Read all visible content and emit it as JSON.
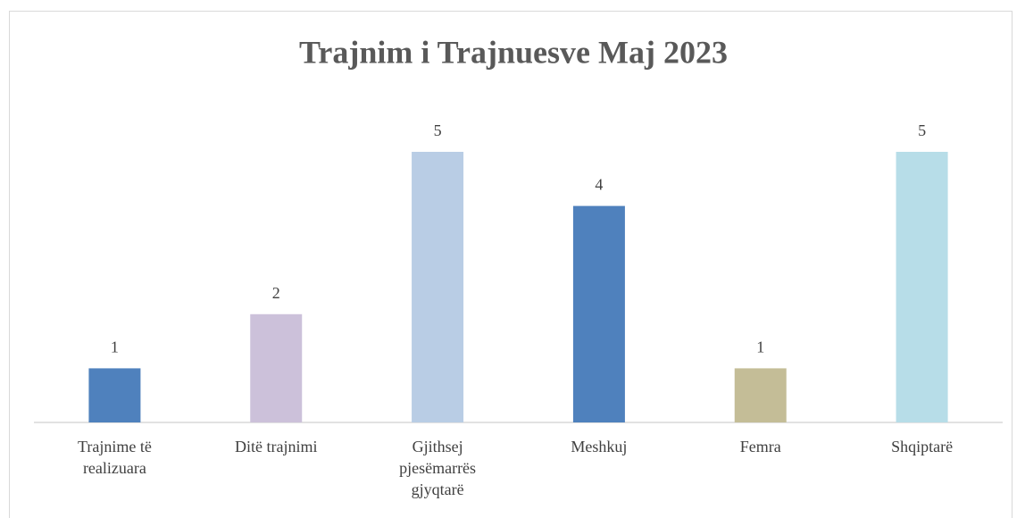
{
  "chart_data": {
    "type": "bar",
    "title": "Trajnim i Trajnuesve Maj 2023",
    "categories": [
      "Trajnime të realizuara",
      "Ditë trajnimi",
      "Gjithsej pjesëmarrës gjyqtarë",
      "Meshkuj",
      "Femra",
      "Shqiptarë"
    ],
    "values": [
      1,
      2,
      5,
      4,
      1,
      5
    ],
    "colors": [
      "#4f81bd",
      "#ccc1da",
      "#b9cde5",
      "#4f81bd",
      "#c4bd97",
      "#b7dde8"
    ],
    "ylim": [
      0,
      5
    ]
  }
}
